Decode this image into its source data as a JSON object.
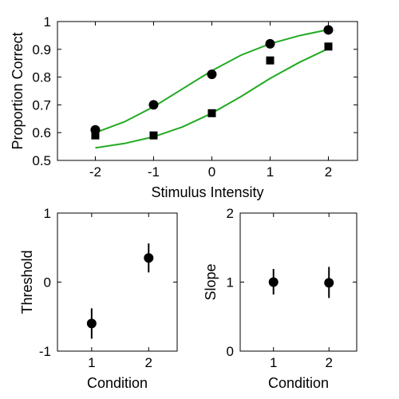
{
  "chart_data": [
    {
      "type": "scatter",
      "title": "",
      "xlabel": "Stimulus Intensity",
      "ylabel": "Proportion Correct",
      "xlim": [
        -2.65,
        2.5
      ],
      "ylim": [
        0.5,
        1.0
      ],
      "xticks": [
        -2,
        -1,
        0,
        1,
        2
      ],
      "yticks": [
        0.5,
        0.6,
        0.7,
        0.8,
        0.9,
        1.0
      ],
      "x_tick_labels": [
        "-2",
        "-1",
        "0",
        "1",
        "2"
      ],
      "y_tick_labels": [
        "0.5",
        "0.6",
        "0.7",
        "0.8",
        "0.9",
        "1"
      ],
      "grid": false,
      "legend": "none",
      "series": [
        {
          "marker": "circle",
          "color": "#000000",
          "x": [
            -2,
            -1,
            0,
            1,
            2
          ],
          "y": [
            0.61,
            0.7,
            0.81,
            0.92,
            0.97
          ]
        },
        {
          "marker": "square",
          "color": "#000000",
          "x": [
            -2,
            -1,
            0,
            1,
            2
          ],
          "y": [
            0.59,
            0.59,
            0.67,
            0.86,
            0.91
          ]
        }
      ],
      "fit_curves": [
        {
          "color": "#22aa22",
          "x": [
            -2,
            -1.5,
            -1,
            -0.5,
            0,
            0.5,
            1,
            1.5,
            2
          ],
          "y": [
            0.6,
            0.639,
            0.693,
            0.758,
            0.823,
            0.879,
            0.92,
            0.949,
            0.971
          ]
        },
        {
          "color": "#22aa22",
          "x": [
            -2,
            -1.5,
            -1,
            -0.5,
            0,
            0.5,
            1,
            1.5,
            2
          ],
          "y": [
            0.545,
            0.561,
            0.585,
            0.621,
            0.67,
            0.73,
            0.795,
            0.853,
            0.903
          ]
        }
      ]
    },
    {
      "type": "scatter",
      "title": "",
      "xlabel": "Condition",
      "ylabel": "Threshold",
      "xlim": [
        0.4,
        2.5
      ],
      "ylim": [
        -1,
        1
      ],
      "xticks": [
        1,
        2
      ],
      "yticks": [
        -1,
        0,
        1
      ],
      "x_tick_labels": [
        "1",
        "2"
      ],
      "y_tick_labels": [
        "-1",
        "0",
        "1"
      ],
      "grid": false,
      "legend": "none",
      "series": [
        {
          "marker": "circle",
          "color": "#000000",
          "x": [
            1,
            2
          ],
          "y": [
            -0.6,
            0.35
          ],
          "error_low": [
            -0.82,
            0.14
          ],
          "error_high": [
            -0.38,
            0.56
          ]
        }
      ]
    },
    {
      "type": "scatter",
      "title": "",
      "xlabel": "Condition",
      "ylabel": "Slope",
      "xlim": [
        0.4,
        2.5
      ],
      "ylim": [
        0,
        2
      ],
      "xticks": [
        1,
        2
      ],
      "yticks": [
        0,
        1,
        2
      ],
      "x_tick_labels": [
        "1",
        "2"
      ],
      "y_tick_labels": [
        "0",
        "1",
        "2"
      ],
      "grid": false,
      "legend": "none",
      "series": [
        {
          "marker": "circle",
          "color": "#000000",
          "x": [
            1,
            2
          ],
          "y": [
            1.0,
            0.99
          ],
          "error_low": [
            0.82,
            0.77
          ],
          "error_high": [
            1.19,
            1.22
          ]
        }
      ]
    }
  ]
}
